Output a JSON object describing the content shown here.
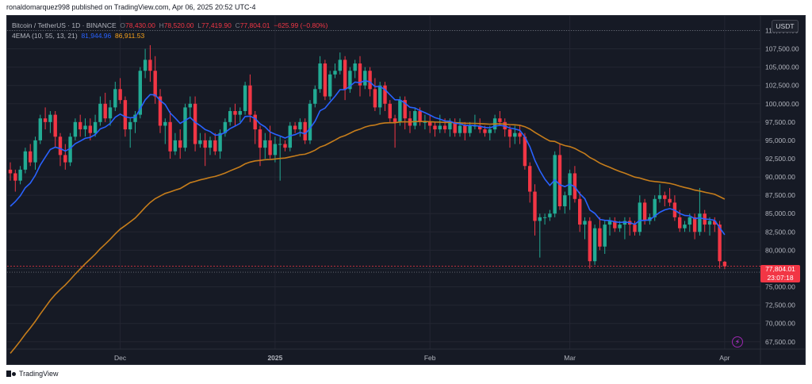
{
  "header": {
    "published_line": "ronaldomarquez998 published on TradingView.com, Apr 06, 2025 20:52 UTC-4"
  },
  "legend": {
    "symbol": "Bitcoin / TetherUS · 1D · BINANCE",
    "open_label": "O",
    "open": "78,430.00",
    "high_label": "H",
    "high": "78,520.00",
    "low_label": "L",
    "low": "77,419.90",
    "close_label": "C",
    "close": "77,804.01",
    "change": "−625.99 (−0.80%)",
    "indicator": "4EMA (10, 55, 13, 21)",
    "ema_fast_value": "81,944.96",
    "ema_slow_value": "86,911.53"
  },
  "currency_button": "USDT",
  "last_price": {
    "price": "77,804.01",
    "countdown": "23:07:18"
  },
  "footer": {
    "brand": "TradingView"
  },
  "colors": {
    "up": "#22ab94",
    "down": "#f23645",
    "ema_fast": "#2962ff",
    "ema_slow": "#c67d1b",
    "grid": "#232632",
    "axis_text": "#b2b5be"
  },
  "chart_data": {
    "type": "candlestick",
    "title": "Bitcoin / TetherUS · 1D · BINANCE",
    "ylim": [
      66500,
      112000
    ],
    "y_ticks": [
      67500,
      70000,
      72500,
      75000,
      77500,
      80000,
      82500,
      85000,
      87500,
      90000,
      92500,
      95000,
      97500,
      100000,
      102500,
      105000,
      107500,
      110000
    ],
    "y_tick_labels": [
      "67,500.00",
      "70,000.00",
      "72,500.00",
      "75,000.00",
      "77,500.00",
      "80,000.00",
      "82,500.00",
      "85,000.00",
      "87,500.00",
      "90,000.00",
      "92,500.00",
      "95,000.00",
      "97,500.00",
      "100,000.00",
      "102,500.00",
      "105,000.00",
      "107,500.00",
      "110,000.00"
    ],
    "x_tick_labels": [
      {
        "label": "Dec",
        "index": 22
      },
      {
        "label": "2025",
        "index": 53
      },
      {
        "label": "Feb",
        "index": 84
      },
      {
        "label": "Mar",
        "index": 112
      },
      {
        "label": "Apr",
        "index": 143
      }
    ],
    "reference_lines": [
      110000,
      77000
    ],
    "candles": [
      [
        91000,
        92000,
        89500,
        90500
      ],
      [
        90500,
        91000,
        88000,
        89500
      ],
      [
        89500,
        91500,
        89000,
        91000
      ],
      [
        91000,
        94000,
        90500,
        93500
      ],
      [
        93500,
        94500,
        91500,
        92000
      ],
      [
        92000,
        95500,
        91000,
        95000
      ],
      [
        95000,
        98500,
        94500,
        98000
      ],
      [
        98000,
        99500,
        96500,
        97500
      ],
      [
        97500,
        99000,
        96000,
        98500
      ],
      [
        98500,
        99000,
        94000,
        95500
      ],
      [
        95500,
        96000,
        91500,
        93000
      ],
      [
        93000,
        94500,
        91000,
        92000
      ],
      [
        92000,
        96000,
        91500,
        95500
      ],
      [
        95500,
        98000,
        95000,
        97500
      ],
      [
        97500,
        98500,
        95500,
        96500
      ],
      [
        96500,
        98000,
        95500,
        97000
      ],
      [
        97000,
        98000,
        95000,
        96000
      ],
      [
        96000,
        98500,
        95500,
        97500
      ],
      [
        97500,
        101000,
        97000,
        100000
      ],
      [
        100000,
        101500,
        97500,
        98000
      ],
      [
        98000,
        100500,
        97000,
        99500
      ],
      [
        99500,
        103000,
        99000,
        102000
      ],
      [
        102000,
        103500,
        100000,
        100500
      ],
      [
        100500,
        101000,
        95500,
        96500
      ],
      [
        96500,
        98000,
        94000,
        97500
      ],
      [
        97500,
        99000,
        96000,
        98500
      ],
      [
        98500,
        105000,
        98000,
        104500
      ],
      [
        104500,
        107500,
        103500,
        106000
      ],
      [
        106000,
        108000,
        103000,
        104500
      ],
      [
        104500,
        106500,
        100000,
        101000
      ],
      [
        101000,
        102000,
        96000,
        97000
      ],
      [
        97000,
        98000,
        94500,
        97500
      ],
      [
        97500,
        99000,
        92500,
        93500
      ],
      [
        93500,
        96000,
        93000,
        95000
      ],
      [
        95000,
        96500,
        92500,
        94000
      ],
      [
        94000,
        100000,
        93500,
        99500
      ],
      [
        99500,
        101000,
        98000,
        100000
      ],
      [
        100000,
        101000,
        93500,
        94500
      ],
      [
        94500,
        96000,
        94000,
        95000
      ],
      [
        95000,
        96000,
        91500,
        94000
      ],
      [
        94000,
        95500,
        93000,
        95000
      ],
      [
        95000,
        96000,
        93000,
        93500
      ],
      [
        93500,
        96500,
        92500,
        96000
      ],
      [
        96000,
        98000,
        95500,
        97500
      ],
      [
        97500,
        99500,
        97000,
        99000
      ],
      [
        99000,
        100000,
        97000,
        98500
      ],
      [
        98500,
        99500,
        97500,
        99000
      ],
      [
        99000,
        103000,
        98500,
        102500
      ],
      [
        102500,
        104000,
        97500,
        98500
      ],
      [
        98500,
        99000,
        94500,
        96500
      ],
      [
        96500,
        97000,
        91500,
        94000
      ],
      [
        94000,
        96000,
        92500,
        95000
      ],
      [
        95000,
        97000,
        92500,
        93000
      ],
      [
        93000,
        95500,
        92000,
        94500
      ],
      [
        94500,
        95500,
        89500,
        94500
      ],
      [
        94500,
        95000,
        93500,
        94000
      ],
      [
        94000,
        97500,
        93500,
        97000
      ],
      [
        97000,
        97500,
        96000,
        96500
      ],
      [
        96500,
        98000,
        95500,
        97500
      ],
      [
        97500,
        98000,
        94500,
        95000
      ],
      [
        95000,
        100500,
        94500,
        100000
      ],
      [
        100000,
        102500,
        99500,
        102000
      ],
      [
        102000,
        106500,
        101500,
        105500
      ],
      [
        105500,
        106000,
        100500,
        101000
      ],
      [
        101000,
        104500,
        100500,
        104000
      ],
      [
        104000,
        105500,
        103500,
        104500
      ],
      [
        104500,
        107000,
        104000,
        106000
      ],
      [
        106000,
        106500,
        100500,
        102000
      ],
      [
        102000,
        105000,
        101500,
        104500
      ],
      [
        104500,
        106000,
        103500,
        105500
      ],
      [
        105500,
        106500,
        101000,
        102500
      ],
      [
        102500,
        105000,
        102000,
        104500
      ],
      [
        104500,
        105000,
        101000,
        102000
      ],
      [
        102000,
        103500,
        99000,
        99500
      ],
      [
        99500,
        103000,
        98500,
        102500
      ],
      [
        102500,
        103000,
        99000,
        100000
      ],
      [
        100000,
        100500,
        97500,
        98000
      ],
      [
        98000,
        98500,
        94000,
        97500
      ],
      [
        97500,
        101000,
        97000,
        100500
      ],
      [
        100500,
        101000,
        96500,
        98000
      ],
      [
        98000,
        99000,
        96000,
        97000
      ],
      [
        97000,
        99500,
        96500,
        99000
      ],
      [
        99000,
        99500,
        97000,
        97500
      ],
      [
        97500,
        98500,
        96500,
        97500
      ],
      [
        97500,
        98500,
        96000,
        97000
      ],
      [
        97000,
        97500,
        95500,
        96500
      ],
      [
        96500,
        98500,
        96000,
        97000
      ],
      [
        97000,
        98000,
        96000,
        96500
      ],
      [
        96500,
        98000,
        95500,
        97500
      ],
      [
        97500,
        98000,
        95500,
        96000
      ],
      [
        96000,
        98000,
        95500,
        97000
      ],
      [
        97000,
        97500,
        95000,
        96000
      ],
      [
        96000,
        97500,
        95500,
        97000
      ],
      [
        97000,
        98500,
        96500,
        97000
      ],
      [
        97000,
        98000,
        96000,
        96500
      ],
      [
        96500,
        97000,
        95500,
        96000
      ],
      [
        96000,
        97000,
        95000,
        96500
      ],
      [
        96500,
        98500,
        96000,
        98000
      ],
      [
        98000,
        99000,
        97000,
        97500
      ],
      [
        97500,
        98000,
        95500,
        96500
      ],
      [
        96500,
        97000,
        94000,
        95500
      ],
      [
        95500,
        97000,
        94500,
        96000
      ],
      [
        96000,
        97000,
        94500,
        95500
      ],
      [
        95500,
        96000,
        91000,
        91500
      ],
      [
        91500,
        92000,
        86500,
        88000
      ],
      [
        88000,
        89000,
        82000,
        84000
      ],
      [
        84000,
        85000,
        79000,
        84500
      ],
      [
        84500,
        85000,
        83500,
        84500
      ],
      [
        84500,
        85500,
        84000,
        85000
      ],
      [
        85000,
        93500,
        84500,
        93000
      ],
      [
        93000,
        94500,
        85500,
        86000
      ],
      [
        86000,
        88000,
        85000,
        87500
      ],
      [
        87500,
        91000,
        85500,
        90500
      ],
      [
        90500,
        91500,
        86500,
        87000
      ],
      [
        87000,
        88000,
        82500,
        83500
      ],
      [
        83500,
        84500,
        81500,
        84000
      ],
      [
        84000,
        84500,
        77500,
        78500
      ],
      [
        78500,
        83500,
        78000,
        83000
      ],
      [
        83000,
        84500,
        80000,
        80500
      ],
      [
        80500,
        84000,
        79500,
        83500
      ],
      [
        83500,
        84500,
        82000,
        84000
      ],
      [
        84000,
        84500,
        82500,
        83000
      ],
      [
        83000,
        84000,
        82500,
        83500
      ],
      [
        83500,
        84500,
        81500,
        84000
      ],
      [
        84000,
        84500,
        82000,
        83500
      ],
      [
        83500,
        84000,
        82000,
        82500
      ],
      [
        82500,
        87500,
        82000,
        86500
      ],
      [
        86500,
        87000,
        83500,
        84000
      ],
      [
        84000,
        85000,
        83500,
        84500
      ],
      [
        84500,
        87500,
        84000,
        87000
      ],
      [
        87000,
        89000,
        86500,
        87500
      ],
      [
        87500,
        88000,
        86000,
        87000
      ],
      [
        87000,
        88500,
        86000,
        86500
      ],
      [
        86500,
        87500,
        84000,
        84500
      ],
      [
        84500,
        85500,
        82500,
        83000
      ],
      [
        83000,
        84000,
        82500,
        83500
      ],
      [
        83500,
        85000,
        82500,
        84500
      ],
      [
        84500,
        85000,
        81500,
        82500
      ],
      [
        82500,
        88500,
        82000,
        85000
      ],
      [
        85000,
        85500,
        82500,
        83500
      ],
      [
        83500,
        84500,
        82000,
        84000
      ],
      [
        84000,
        84500,
        82500,
        83500
      ],
      [
        83500,
        84000,
        77500,
        78500
      ],
      [
        78430,
        78520,
        77419.9,
        77804.01
      ]
    ]
  }
}
